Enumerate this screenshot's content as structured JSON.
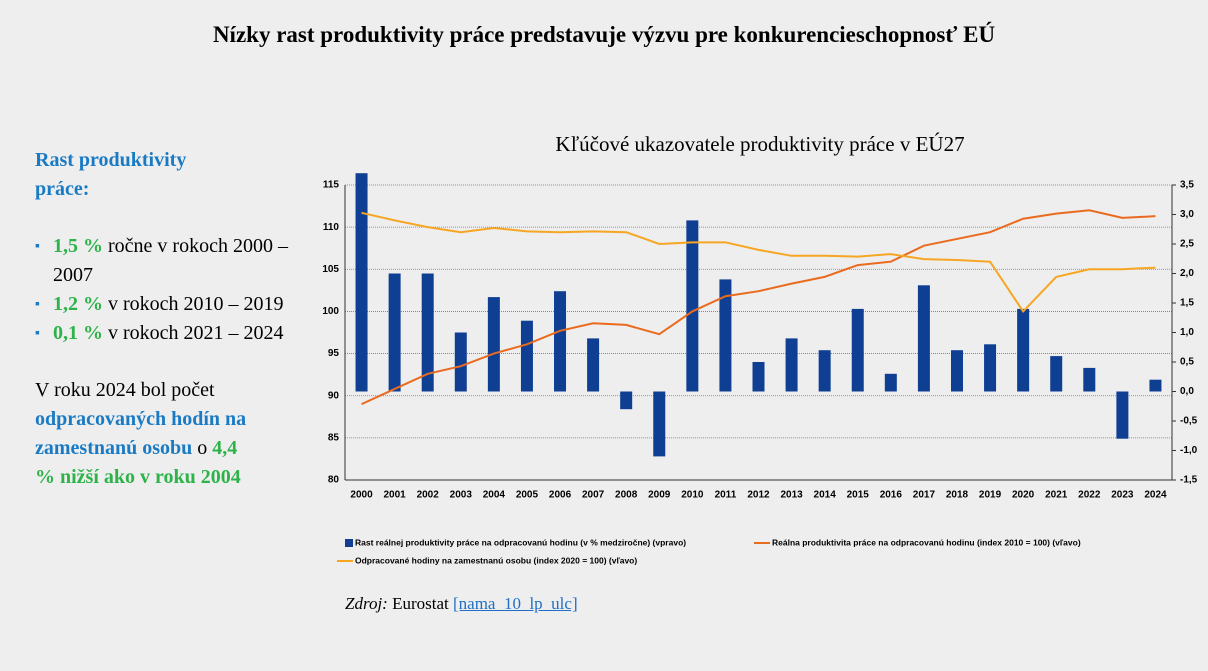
{
  "header": {
    "title": "Nízky rast produktivity práce predstavuje výzvu pre konkurencieschopnosť EÚ"
  },
  "sidebar": {
    "heading": "Rast produktivity práce:",
    "bullets": [
      {
        "highlight": "1,5 %",
        "text": "ročne v rokoch 2000 – 2007"
      },
      {
        "highlight": "1,2 %",
        "text": "v rokoch 2010 – 2019"
      },
      {
        "highlight": "0,1 %",
        "text": "v rokoch 2021 – 2024"
      }
    ],
    "note": [
      {
        "text": "V roku 2024 bol počet ",
        "color": "#000000"
      },
      {
        "text": "odpracovaných hodín na zamestnanú osobu",
        "color": "#1a7bc4"
      },
      {
        "text": " o ",
        "color": "#000000"
      },
      {
        "text": "4,4 % nižší ako v roku 2004",
        "color": "#2db34a"
      }
    ]
  },
  "chart_data": {
    "type": "bar",
    "title": "Kľúčové ukazovatele produktivity práce v EÚ27",
    "categories": [
      "2000",
      "2001",
      "2002",
      "2003",
      "2004",
      "2005",
      "2006",
      "2007",
      "2008",
      "2009",
      "2010",
      "2011",
      "2012",
      "2013",
      "2014",
      "2015",
      "2016",
      "2017",
      "2018",
      "2019",
      "2020",
      "2021",
      "2022",
      "2023",
      "2024"
    ],
    "series": [
      {
        "name": "Rast reálnej produktivity práce na odpracovanú hodinu (v % medziročne) (vpravo)",
        "type": "bar",
        "axis": "y2",
        "color": "#0f3f93",
        "values": [
          3.7,
          2.0,
          2.0,
          1.0,
          1.6,
          1.2,
          1.7,
          0.9,
          -0.3,
          -1.1,
          2.9,
          1.9,
          0.5,
          0.9,
          0.7,
          1.4,
          0.3,
          1.8,
          0.7,
          0.8,
          1.4,
          0.6,
          0.4,
          -0.8,
          0.2
        ]
      },
      {
        "name": "Reálna produktivita práce na odpracovanú hodinu (index 2010 = 100) (vľavo)",
        "type": "line",
        "axis": "y",
        "color": "#ea6a1e",
        "values": [
          89.0,
          90.8,
          92.6,
          93.5,
          95.0,
          96.1,
          97.7,
          98.6,
          98.4,
          97.3,
          100.0,
          101.8,
          102.4,
          103.3,
          104.1,
          105.5,
          105.9,
          107.8,
          108.6,
          109.4,
          111.0,
          111.6,
          112.0,
          111.1,
          111.3
        ]
      },
      {
        "name": "Odpracované hodiny na zamestnanú osobu (index 2020 = 100) (vľavo)",
        "type": "line",
        "axis": "y",
        "color": "#f6a623",
        "values": [
          111.7,
          110.8,
          110.0,
          109.4,
          109.9,
          109.5,
          109.4,
          109.5,
          109.4,
          108.0,
          108.2,
          108.2,
          107.3,
          106.6,
          106.6,
          106.5,
          106.8,
          106.2,
          106.1,
          105.9,
          100.0,
          104.1,
          105.0,
          105.0,
          105.2
        ]
      }
    ],
    "ylim": [
      80,
      115
    ],
    "yticks": [
      80,
      85,
      90,
      95,
      100,
      105,
      110,
      115
    ],
    "y2lim": [
      -1.5,
      3.5
    ],
    "y2ticks": [
      {
        "value": -1.5,
        "label": "-1,5"
      },
      {
        "value": -1.0,
        "label": "-1,0"
      },
      {
        "value": -0.5,
        "label": "-0,5"
      },
      {
        "value": 0,
        "label": "0,0"
      },
      {
        "value": 0.5,
        "label": "0,5"
      },
      {
        "value": 1.0,
        "label": "1,0"
      },
      {
        "value": 1.5,
        "label": "1,5"
      },
      {
        "value": 2.0,
        "label": "2,0"
      },
      {
        "value": 2.5,
        "label": "2,5"
      },
      {
        "value": 3.0,
        "label": "3,0"
      },
      {
        "value": 3.5,
        "label": "3,5"
      }
    ],
    "grid": true
  },
  "source": {
    "label": "Zdroj:",
    "text": "Eurostat",
    "link": "[nama_10_lp_ulc]"
  }
}
